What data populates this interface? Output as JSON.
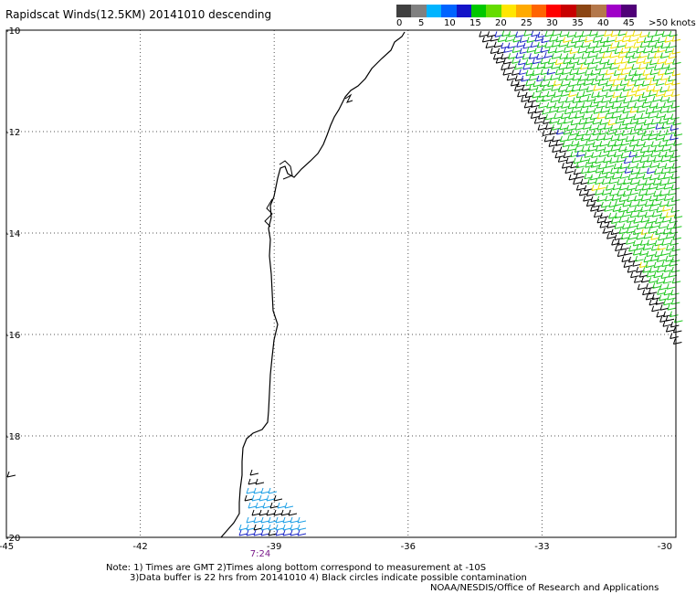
{
  "title": "Rapidscat Winds(12.5KM) 20141010 descending",
  "legend": {
    "colors": [
      "#404040",
      "#808080",
      "#00b4ff",
      "#0064ff",
      "#1414c8",
      "#00c800",
      "#64dc00",
      "#ffe600",
      "#ffaa00",
      "#ff6400",
      "#ff0000",
      "#c80000",
      "#8b4513",
      "#b4784b",
      "#a000c8",
      "#500078"
    ],
    "labels": [
      "0",
      "5",
      "10",
      "15",
      "20",
      "25",
      "30",
      "35",
      "40",
      "45",
      ">50 knots"
    ]
  },
  "axes": {
    "lon_ticks": [
      "-45",
      "-42",
      "-39",
      "-36",
      "-33",
      "-30"
    ],
    "lat_ticks": [
      "-10",
      "-12",
      "-14",
      "-16",
      "-18",
      "-20"
    ],
    "lon_range": [
      -45,
      -30
    ],
    "lat_range": [
      -20,
      -10
    ],
    "grid": true
  },
  "pass_time": "7:24",
  "notes": {
    "line1": "Note: 1) Times are GMT 2)Times along bottom correspond to measurement at -10S",
    "line2": "3)Data buffer is 22 hrs from 20141010 4) Black circles indicate possible contamination",
    "credit": "NOAA/NESDIS/Office of Research and Applications"
  },
  "colors": {
    "barb_green": "#1fc81f",
    "barb_yellow": "#f0e000",
    "barb_blue": "#1e28c8",
    "barb_cyan": "#1ea0e6",
    "barb_black": "#000000",
    "coast": "#000000",
    "time": "#7a1a8a"
  }
}
